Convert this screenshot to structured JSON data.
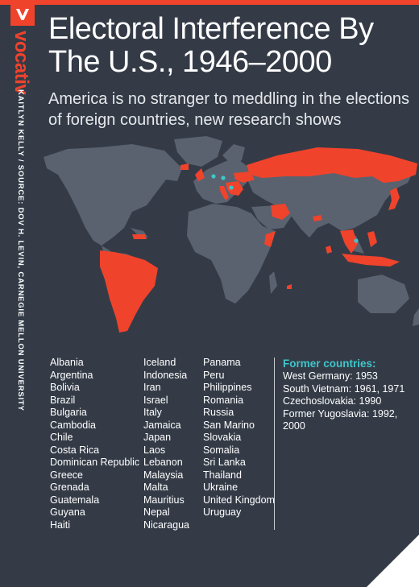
{
  "brand": {
    "logo_letter": "v",
    "name": "vocativ"
  },
  "credit": "KAITLYN KELLY / SOURCE: DOV H. LEVIN, CARNEGIE MELLON UNIVERSITY",
  "title": "Electoral Interference By The U.S., 1946–2000",
  "subtitle": "America is no stranger to meddling in the elections of foreign countries, new research shows",
  "colors": {
    "background": "#343b47",
    "land": "#5a6270",
    "highlight": "#f0432c",
    "accent": "#3fc6c9"
  },
  "countries": {
    "col1": [
      "Albania",
      "Argentina",
      "Bolivia",
      "Brazil",
      "Bulgaria",
      "Cambodia",
      "Chile",
      "Costa Rica",
      "Dominican Republic",
      "Greece",
      "Grenada",
      "Guatemala",
      "Guyana",
      "Haiti"
    ],
    "col2": [
      "Iceland",
      "Indonesia",
      "Iran",
      "Israel",
      "Italy",
      "Jamaica",
      "Japan",
      "Laos",
      "Lebanon",
      "Malaysia",
      "Malta",
      "Mauritius",
      "Nepal",
      "Nicaragua"
    ],
    "col3": [
      "Panama",
      "Peru",
      "Philippines",
      "Romania",
      "Russia",
      "San Marino",
      "Slovakia",
      "Somalia",
      "Sri Lanka",
      "Thailand",
      "Ukraine",
      "United Kingdom",
      "Uruguay"
    ]
  },
  "former": {
    "title": "Former countries:",
    "items": [
      "West Germany: 1953",
      "South Vietnam: 1961, 1971",
      "Czechoslovakia: 1990",
      "Former Yugoslavia: 1992, 2000"
    ]
  }
}
